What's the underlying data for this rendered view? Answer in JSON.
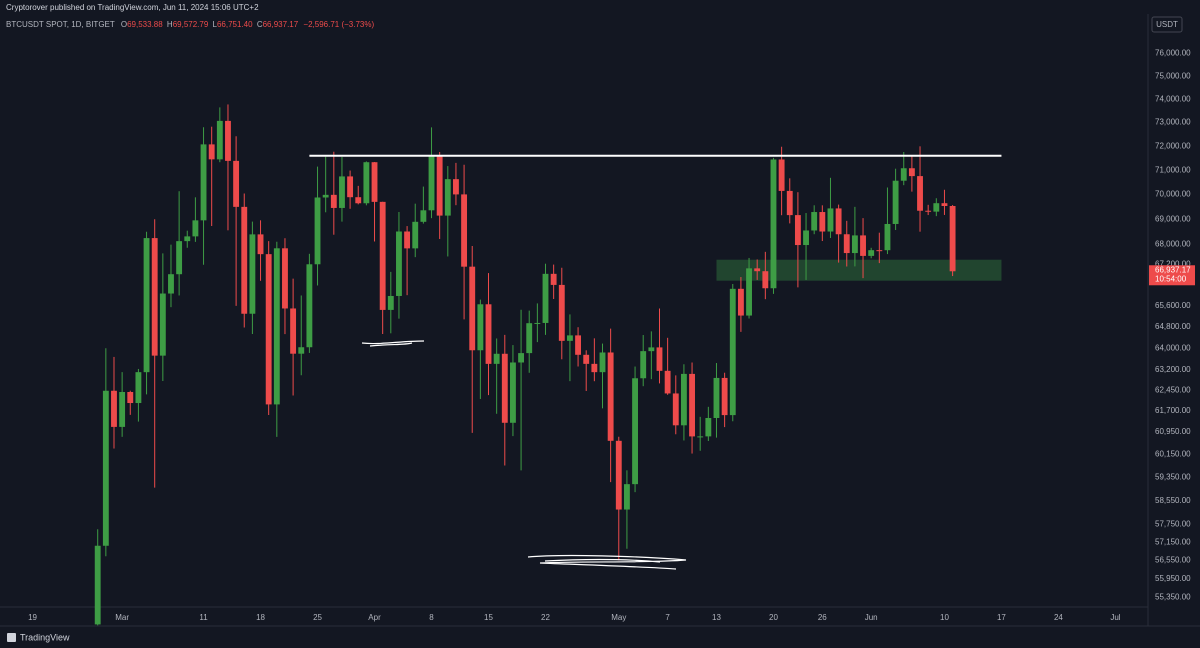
{
  "header": {
    "publisher": "Cryptorover published on TradingView.com, Jun 11, 2024 15:06 UTC+2",
    "brand": "TradingView"
  },
  "chart_data": {
    "type": "candlestick",
    "symbol": "BTCUSDT SPOT, 1D, BITGET",
    "ohlc_legend": [
      {
        "key": "O",
        "text": "69,533.88"
      },
      {
        "key": "H",
        "text": "69,572.79"
      },
      {
        "key": "L",
        "text": "66,751.40"
      },
      {
        "key": "C",
        "text": "66,937.17"
      }
    ],
    "change": "−2,596.71 (−3.73%)",
    "currency": "USDT",
    "last_price": {
      "value": 66937.17,
      "label": "66,937.17"
    },
    "countdown": "10:54:00",
    "up_color": "#3e9d45",
    "down_color": "#ee4b4b",
    "log_scale": true,
    "grid": false,
    "x": [
      "2024-02-27",
      "2024-02-28",
      "2024-02-29",
      "2024-03-01",
      "2024-03-02",
      "2024-03-03",
      "2024-03-04",
      "2024-03-05",
      "2024-03-06",
      "2024-03-07",
      "2024-03-08",
      "2024-03-09",
      "2024-03-10",
      "2024-03-11",
      "2024-03-12",
      "2024-03-13",
      "2024-03-14",
      "2024-03-15",
      "2024-03-16",
      "2024-03-17",
      "2024-03-18",
      "2024-03-19",
      "2024-03-20",
      "2024-03-21",
      "2024-03-22",
      "2024-03-23",
      "2024-03-24",
      "2024-03-25",
      "2024-03-26",
      "2024-03-27",
      "2024-03-28",
      "2024-03-29",
      "2024-03-30",
      "2024-03-31",
      "2024-04-01",
      "2024-04-02",
      "2024-04-03",
      "2024-04-04",
      "2024-04-05",
      "2024-04-06",
      "2024-04-07",
      "2024-04-08",
      "2024-04-09",
      "2024-04-10",
      "2024-04-11",
      "2024-04-12",
      "2024-04-13",
      "2024-04-14",
      "2024-04-15",
      "2024-04-16",
      "2024-04-17",
      "2024-04-18",
      "2024-04-19",
      "2024-04-20",
      "2024-04-21",
      "2024-04-22",
      "2024-04-23",
      "2024-04-24",
      "2024-04-25",
      "2024-04-26",
      "2024-04-27",
      "2024-04-28",
      "2024-04-29",
      "2024-04-30",
      "2024-05-01",
      "2024-05-02",
      "2024-05-03",
      "2024-05-04",
      "2024-05-05",
      "2024-05-06",
      "2024-05-07",
      "2024-05-08",
      "2024-05-09",
      "2024-05-10",
      "2024-05-11",
      "2024-05-12",
      "2024-05-13",
      "2024-05-14",
      "2024-05-15",
      "2024-05-16",
      "2024-05-17",
      "2024-05-18",
      "2024-05-19",
      "2024-05-20",
      "2024-05-21",
      "2024-05-22",
      "2024-05-23",
      "2024-05-24",
      "2024-05-25",
      "2024-05-26",
      "2024-05-27",
      "2024-05-28",
      "2024-05-29",
      "2024-05-30",
      "2024-05-31",
      "2024-06-01",
      "2024-06-02",
      "2024-06-03",
      "2024-06-04",
      "2024-06-05",
      "2024-06-06",
      "2024-06-07",
      "2024-06-08",
      "2024-06-09",
      "2024-06-10",
      "2024-06-11"
    ],
    "open": [
      54480,
      57037,
      62432,
      61130,
      62387,
      61987,
      63113,
      68245,
      63724,
      66074,
      66823,
      68124,
      68313,
      68955,
      72078,
      71452,
      73072,
      71388,
      69499,
      65300,
      68393,
      67609,
      61937,
      67840,
      65501,
      63796,
      64037,
      67211,
      69880,
      69988,
      69455,
      70744,
      69892,
      69645,
      71333,
      69702,
      65446,
      65980,
      68508,
      67837,
      68896,
      69360,
      71620,
      69146,
      70631,
      70006,
      67117,
      63924,
      65661,
      63419,
      63793,
      61277,
      63470,
      63818,
      64941,
      64950,
      66837,
      66407,
      64276,
      64481,
      63755,
      63419,
      63113,
      63841,
      60636,
      58254,
      59123,
      62889,
      63891,
      64031,
      63162,
      62334,
      61187,
      63049,
      60792,
      60793,
      61448,
      62901,
      61552,
      66256,
      65231,
      67051,
      66940,
      66278,
      71446,
      70148,
      69166,
      67969,
      68549,
      69290,
      68507,
      69436,
      68398,
      67652,
      68352,
      67540,
      67766,
      67765,
      68809,
      70567,
      71082,
      70757,
      69342,
      69306,
      69648,
      69534
    ],
    "high": [
      57588,
      64000,
      63676,
      63114,
      62433,
      63231,
      68499,
      69000,
      67637,
      67985,
      70136,
      68541,
      69887,
      72800,
      72825,
      73650,
      73777,
      72419,
      70043,
      68904,
      68956,
      68124,
      68100,
      68240,
      66650,
      65999,
      67622,
      71150,
      71561,
      71770,
      71552,
      70987,
      70355,
      71366,
      71342,
      69708,
      66914,
      69291,
      68725,
      69629,
      70326,
      72797,
      71758,
      71172,
      71305,
      71227,
      67931,
      65840,
      66867,
      64365,
      64499,
      64117,
      65450,
      65419,
      65695,
      67233,
      67199,
      67075,
      65275,
      64789,
      63923,
      64370,
      64174,
      64734,
      60780,
      59602,
      63320,
      64494,
      64632,
      65500,
      64390,
      62995,
      63404,
      63469,
      61490,
      61850,
      63450,
      63092,
      66444,
      66712,
      67459,
      67400,
      67700,
      71515,
      71979,
      70666,
      70096,
      69250,
      69563,
      69562,
      70687,
      69591,
      68935,
      69500,
      69044,
      67860,
      68460,
      70288,
      71063,
      71758,
      71625,
      71997,
      69582,
      69850,
      70195,
      69573
    ],
    "low": [
      54450,
      56690,
      60364,
      60777,
      61561,
      61320,
      62300,
      59005,
      62787,
      65551,
      66000,
      67861,
      68094,
      67194,
      68728,
      71333,
      68555,
      65600,
      64780,
      64533,
      66566,
      61555,
      60775,
      64529,
      62260,
      63000,
      63825,
      66385,
      69280,
      68379,
      68903,
      69421,
      69601,
      69562,
      68110,
      64533,
      64559,
      65113,
      66011,
      67491,
      68824,
      69043,
      68210,
      67518,
      69567,
      65086,
      60919,
      62134,
      62274,
      61600,
      59768,
      60803,
      59600,
      63090,
      64229,
      64500,
      65864,
      63589,
      62783,
      63322,
      62424,
      62781,
      61795,
      59191,
      56552,
      56937,
      58848,
      62599,
      62856,
      62700,
      62285,
      60868,
      60648,
      60187,
      60285,
      60630,
      60749,
      61123,
      61330,
      64613,
      65119,
      66600,
      65857,
      66060,
      69162,
      68832,
      66312,
      66600,
      68400,
      68128,
      68250,
      67277,
      67124,
      67128,
      66670,
      67445,
      67257,
      67612,
      68567,
      70384,
      70119,
      68500,
      69168,
      69125,
      69172,
      66751
    ],
    "close": [
      57037,
      62432,
      61130,
      62387,
      61987,
      63113,
      68245,
      63724,
      66074,
      66823,
      68124,
      68313,
      68955,
      72078,
      71452,
      73072,
      71388,
      69499,
      65300,
      68393,
      67609,
      61937,
      67840,
      65501,
      63796,
      64037,
      67211,
      69880,
      69988,
      69455,
      70744,
      69892,
      69645,
      71333,
      69702,
      65446,
      65980,
      68508,
      67837,
      68896,
      69360,
      71620,
      69146,
      70631,
      70006,
      67117,
      63924,
      65661,
      63419,
      63793,
      61277,
      63470,
      63818,
      64941,
      64950,
      66837,
      66407,
      64276,
      64481,
      63755,
      63419,
      63113,
      63841,
      60636,
      58254,
      59123,
      62889,
      63891,
      64031,
      63162,
      62334,
      61187,
      63049,
      60792,
      60793,
      61448,
      62901,
      61552,
      66256,
      65231,
      67051,
      66940,
      66278,
      71446,
      70148,
      69166,
      67969,
      68549,
      69290,
      68507,
      69436,
      68398,
      67652,
      68352,
      67540,
      67766,
      67765,
      68809,
      70567,
      71082,
      70757,
      69342,
      69306,
      69648,
      69534,
      66937
    ],
    "xlim": [
      "2024-02-15",
      "2024-07-05"
    ],
    "xticks": [
      {
        "value": "2024-02-19",
        "label": "19"
      },
      {
        "value": "2024-03-01",
        "label": "Mar"
      },
      {
        "value": "2024-03-11",
        "label": "11"
      },
      {
        "value": "2024-03-18",
        "label": "18"
      },
      {
        "value": "2024-03-25",
        "label": "25"
      },
      {
        "value": "2024-04-01",
        "label": "Apr"
      },
      {
        "value": "2024-04-08",
        "label": "8"
      },
      {
        "value": "2024-04-15",
        "label": "15"
      },
      {
        "value": "2024-04-22",
        "label": "22"
      },
      {
        "value": "2024-05-01",
        "label": "May"
      },
      {
        "value": "2024-05-07",
        "label": "7"
      },
      {
        "value": "2024-05-13",
        "label": "13"
      },
      {
        "value": "2024-05-20",
        "label": "20"
      },
      {
        "value": "2024-05-26",
        "label": "26"
      },
      {
        "value": "2024-06-01",
        "label": "Jun"
      },
      {
        "value": "2024-06-10",
        "label": "10"
      },
      {
        "value": "2024-06-17",
        "label": "17"
      },
      {
        "value": "2024-06-24",
        "label": "24"
      },
      {
        "value": "2024-07-01",
        "label": "Jul"
      }
    ],
    "ylim": [
      55100,
      77500
    ],
    "yticks": [
      {
        "value": 76000,
        "label": "76,000.00"
      },
      {
        "value": 75000,
        "label": "75,000.00"
      },
      {
        "value": 74000,
        "label": "74,000.00"
      },
      {
        "value": 73000,
        "label": "73,000.00"
      },
      {
        "value": 72000,
        "label": "72,000.00"
      },
      {
        "value": 71000,
        "label": "71,000.00"
      },
      {
        "value": 70000,
        "label": "70,000.00"
      },
      {
        "value": 69000,
        "label": "69,000.00"
      },
      {
        "value": 68000,
        "label": "68,000.00"
      },
      {
        "value": 67200,
        "label": "67,200.00"
      },
      {
        "value": 65600,
        "label": "65,600.00"
      },
      {
        "value": 64800,
        "label": "64,800.00"
      },
      {
        "value": 64000,
        "label": "64,000.00"
      },
      {
        "value": 63200,
        "label": "63,200.00"
      },
      {
        "value": 62450,
        "label": "62,450.00"
      },
      {
        "value": 61700,
        "label": "61,700.00"
      },
      {
        "value": 60950,
        "label": "60,950.00"
      },
      {
        "value": 60150,
        "label": "60,150.00"
      },
      {
        "value": 59350,
        "label": "59,350.00"
      },
      {
        "value": 58550,
        "label": "58,550.00"
      },
      {
        "value": 57750,
        "label": "57,750.00"
      },
      {
        "value": 57150,
        "label": "57,150.00"
      },
      {
        "value": 56550,
        "label": "56,550.00"
      },
      {
        "value": 55950,
        "label": "55,950.00"
      },
      {
        "value": 55350,
        "label": "55,350.00"
      }
    ],
    "hlines": [
      {
        "value": 71600,
        "from": "2024-03-24",
        "to": "2024-06-17",
        "color": "#ffffff"
      }
    ],
    "zones": [
      {
        "low": 66570,
        "high": 67390,
        "from": "2024-05-13",
        "to": "2024-06-17",
        "color": "#2e6b3a"
      }
    ]
  }
}
